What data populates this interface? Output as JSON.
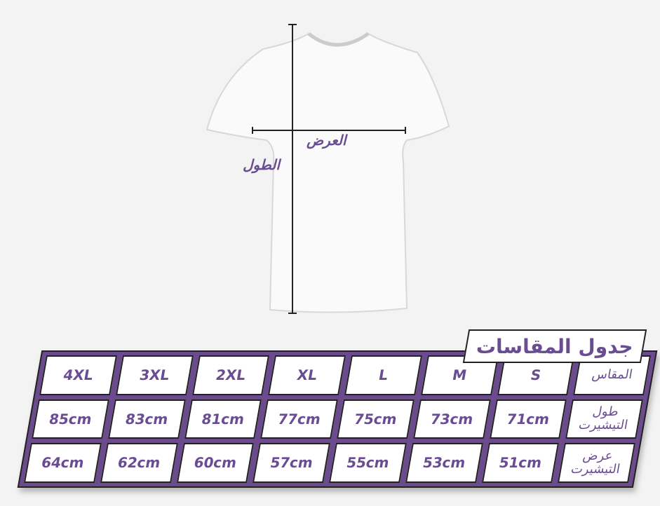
{
  "measure_labels": {
    "width": "العرض",
    "length": "الطول"
  },
  "title": "جدول المقاسات",
  "rows": [
    {
      "label": "المقاس",
      "values": [
        "S",
        "M",
        "L",
        "XL",
        "2XL",
        "3XL",
        "4XL"
      ]
    },
    {
      "label": "طول التيشيرت",
      "values": [
        "71cm",
        "73cm",
        "75cm",
        "77cm",
        "81cm",
        "83cm",
        "85cm"
      ]
    },
    {
      "label": "عرض التيشيرت",
      "values": [
        "51cm",
        "53cm",
        "55cm",
        "57cm",
        "60cm",
        "62cm",
        "64cm"
      ]
    }
  ],
  "colors": {
    "accent": "#6a4c93",
    "frame": "#6b4a8e"
  }
}
